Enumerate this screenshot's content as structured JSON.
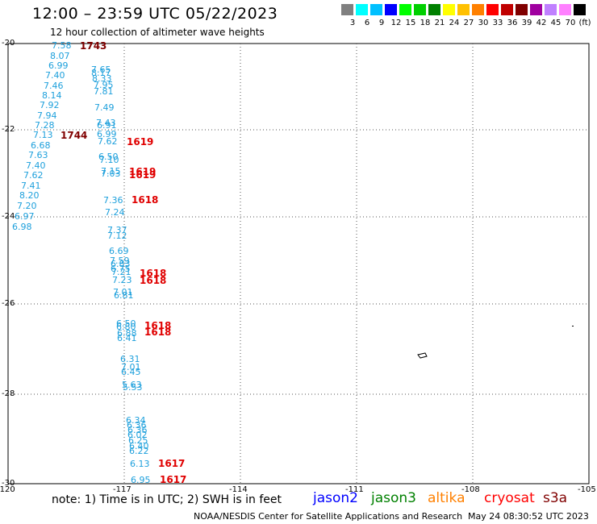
{
  "title": "12:00 – 23:59 UTC 05/22/2023",
  "subtitle": "12 hour collection of altimeter wave heights",
  "scale": {
    "colors": [
      "#808080",
      "#00ffff",
      "#00c0ff",
      "#0000ff",
      "#00ff00",
      "#00d000",
      "#008000",
      "#ffff00",
      "#ffc000",
      "#ff8000",
      "#ff0000",
      "#c00000",
      "#800000",
      "#a000a0",
      "#c080ff",
      "#ff80ff",
      "#000000"
    ],
    "labels": [
      "3",
      "6",
      "9",
      "12",
      "15",
      "18",
      "21",
      "24",
      "27",
      "30",
      "33",
      "36",
      "39",
      "42",
      "45",
      "70",
      "(ft)"
    ]
  },
  "lat_labels": [
    "-20",
    "-22",
    "-24",
    "-26",
    "-28",
    "-30"
  ],
  "lon_labels": [
    "-120",
    "-117",
    "-114",
    "-111",
    "-108",
    "-105"
  ],
  "wave_labels": [
    "7.58",
    "8.07",
    "6.99",
    "7.40",
    "7.46",
    "8.14",
    "7.92",
    "7.94",
    "7.28",
    "7.13",
    "6.68",
    "7.63",
    "7.40",
    "7.62",
    "7.41",
    "8.20",
    "7.20",
    "6.97",
    "6.98",
    "7.65",
    "8.17",
    "8.33",
    "7.95",
    "7.81",
    "7.49",
    "7.43",
    "6.91",
    "6.99",
    "7.62",
    "6.50",
    "7.10",
    "7.15",
    "7.03",
    "7.36",
    "7.24",
    "7.37",
    "7.12",
    "6.69",
    "7.59",
    "6.83",
    "6.75",
    "7.21",
    "7.23",
    "7.01",
    "6.81",
    "6.50",
    "6.80",
    "6.88",
    "6.41",
    "6.31",
    "7.01",
    "6.45",
    "5.63",
    "5.53",
    "6.34",
    "6.36",
    "6.36",
    "6.02",
    "6.25",
    "6.40",
    "6.22",
    "6.13",
    "6.95"
  ],
  "time_labels": [
    "1743",
    "1744",
    "1619",
    "1619",
    "1619",
    "1618",
    "1618",
    "1618",
    "1618",
    "1618",
    "1617",
    "1617"
  ],
  "note": "note:  1) Time is in UTC;  2) SWH is in feet",
  "legend": [
    {
      "name": "jason2",
      "color": "#0000ff"
    },
    {
      "name": "jason3",
      "color": "#008000"
    },
    {
      "name": "altika",
      "color": "#ff8000"
    },
    {
      "name": "cryosat",
      "color": "#ff0000"
    },
    {
      "name": "s3a",
      "color": "#800000"
    }
  ],
  "credit": "NOAA/NESDIS Center for Satellite Applications and Research",
  "timestamp": "May 24 08:30:52 UTC 2023"
}
